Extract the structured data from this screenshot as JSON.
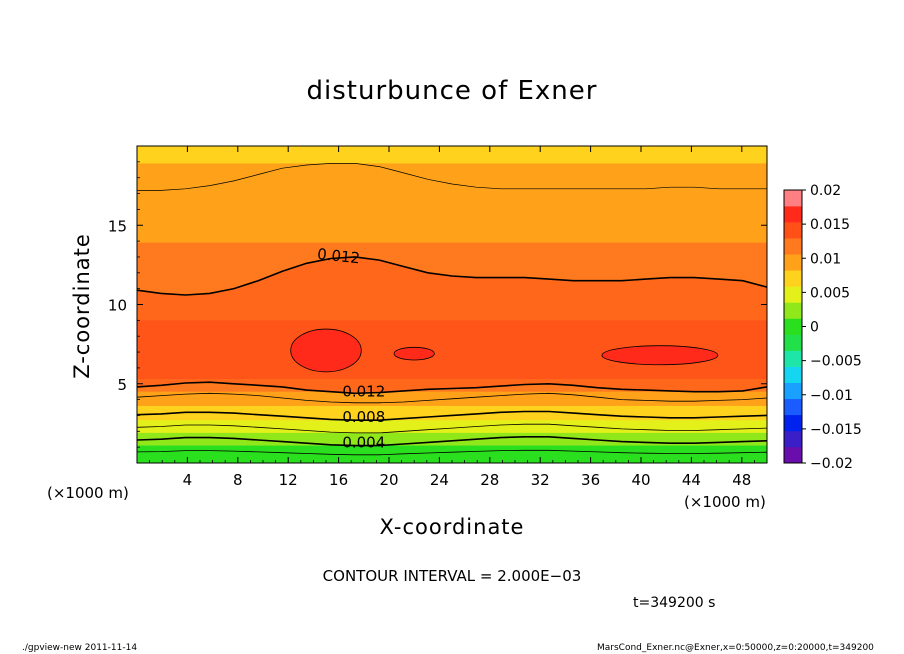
{
  "chart_data": {
    "type": "heatmap",
    "title": "disturbunce of Exner",
    "xlabel": "X-coordinate",
    "ylabel": "Z-coordinate",
    "x_unit_label": "(×1000 m)",
    "y_unit_label": "(×1000 m)",
    "xlim": [
      0,
      50
    ],
    "ylim": [
      0,
      20
    ],
    "x_ticks": [
      4,
      8,
      12,
      16,
      20,
      24,
      28,
      32,
      36,
      40,
      44,
      48
    ],
    "y_ticks": [
      5,
      10,
      15
    ],
    "colorbar": {
      "levels": [
        -0.02,
        -0.0175,
        -0.015,
        -0.0125,
        -0.01,
        -0.0075,
        -0.005,
        -0.0025,
        0,
        0.0025,
        0.005,
        0.0075,
        0.01,
        0.0125,
        0.015,
        0.0175,
        0.02
      ],
      "tick_values": [
        0.02,
        0.015,
        0.01,
        0.005,
        0,
        -0.005,
        -0.01,
        -0.015,
        -0.02
      ],
      "tick_labels": [
        "0.02",
        "0.015",
        "0.01",
        "0.005",
        "0",
        "−0.005",
        "−0.01",
        "−0.015",
        "−0.02"
      ],
      "colors": [
        "#6a0dad",
        "#3a1fc8",
        "#0022ee",
        "#1a5cff",
        "#1aa0ff",
        "#15d6f0",
        "#1ee6a8",
        "#22e04a",
        "#2ae01e",
        "#90e81a",
        "#e4f01a",
        "#ffd21e",
        "#ffa21a",
        "#ff7a1e",
        "#ff5018",
        "#ff2a1a",
        "#ff7f82"
      ]
    },
    "contour_lines": [
      {
        "level": 0.012,
        "z": [
          10.9,
          10.7,
          10.6,
          10.7,
          11.0,
          11.5,
          12.1,
          12.6,
          12.9,
          13.0,
          12.8,
          12.4,
          12.0,
          11.8,
          11.7,
          11.7,
          11.7,
          11.6,
          11.5,
          11.5,
          11.5,
          11.6,
          11.7,
          11.7,
          11.6,
          11.5,
          11.1
        ],
        "label": "0.012"
      },
      {
        "level": 0.012,
        "z": [
          4.8,
          4.9,
          5.05,
          5.1,
          5.0,
          4.9,
          4.8,
          4.6,
          4.5,
          4.4,
          4.45,
          4.55,
          4.65,
          4.7,
          4.75,
          4.85,
          4.95,
          5.0,
          4.9,
          4.75,
          4.65,
          4.6,
          4.55,
          4.5,
          4.5,
          4.55,
          4.8
        ],
        "label": "0.012"
      },
      {
        "level": 0.01,
        "z": [
          4.15,
          4.25,
          4.35,
          4.4,
          4.35,
          4.25,
          4.1,
          3.95,
          3.85,
          3.8,
          3.8,
          3.85,
          3.95,
          4.05,
          4.15,
          4.25,
          4.35,
          4.4,
          4.3,
          4.15,
          4.0,
          3.95,
          3.9,
          3.9,
          3.95,
          4.0,
          4.1
        ],
        "label": ""
      },
      {
        "level": 0.008,
        "z": [
          3.05,
          3.1,
          3.2,
          3.2,
          3.15,
          3.05,
          2.95,
          2.85,
          2.75,
          2.7,
          2.7,
          2.8,
          2.9,
          3.0,
          3.1,
          3.2,
          3.25,
          3.25,
          3.15,
          3.05,
          2.95,
          2.9,
          2.85,
          2.85,
          2.9,
          2.95,
          3.0
        ],
        "label": "0.008"
      },
      {
        "level": 0.006,
        "z": [
          2.25,
          2.3,
          2.4,
          2.4,
          2.35,
          2.25,
          2.15,
          2.05,
          1.95,
          1.9,
          1.9,
          2.0,
          2.1,
          2.2,
          2.3,
          2.4,
          2.45,
          2.45,
          2.35,
          2.25,
          2.15,
          2.1,
          2.05,
          2.05,
          2.1,
          2.15,
          2.2
        ],
        "label": ""
      },
      {
        "level": 0.004,
        "z": [
          1.45,
          1.5,
          1.6,
          1.6,
          1.55,
          1.45,
          1.35,
          1.25,
          1.15,
          1.1,
          1.1,
          1.2,
          1.3,
          1.4,
          1.5,
          1.6,
          1.65,
          1.65,
          1.55,
          1.45,
          1.35,
          1.3,
          1.25,
          1.25,
          1.3,
          1.35,
          1.4
        ],
        "label": "0.004"
      },
      {
        "level": 0.002,
        "z": [
          0.7,
          0.72,
          0.78,
          0.78,
          0.75,
          0.7,
          0.65,
          0.6,
          0.55,
          0.52,
          0.52,
          0.58,
          0.63,
          0.68,
          0.73,
          0.78,
          0.8,
          0.8,
          0.75,
          0.7,
          0.65,
          0.62,
          0.6,
          0.6,
          0.62,
          0.65,
          0.68
        ],
        "label": ""
      }
    ],
    "upper_lines": [
      {
        "z": [
          17.2,
          17.2,
          17.3,
          17.5,
          17.8,
          18.2,
          18.6,
          18.8,
          18.9,
          18.9,
          18.7,
          18.3,
          17.9,
          17.6,
          17.4,
          17.3,
          17.3,
          17.3,
          17.3,
          17.3,
          17.3,
          17.3,
          17.4,
          17.4,
          17.3,
          17.3,
          17.3
        ]
      }
    ],
    "closed_contours": [
      {
        "level": 0.016,
        "cx": 15.0,
        "cz": 7.1,
        "rx": 2.8,
        "rz": 1.35
      },
      {
        "level": 0.016,
        "cx": 22.0,
        "cz": 6.9,
        "rx": 1.6,
        "rz": 0.4
      },
      {
        "level": 0.016,
        "cx": 41.5,
        "cz": 6.8,
        "rx": 4.6,
        "rz": 0.6
      }
    ],
    "band_fills": [
      {
        "color": "#ffd21e",
        "from": 18.9,
        "to": 20.0
      },
      {
        "color": "#ffa21a",
        "from": 13.9,
        "to": 18.9
      },
      {
        "color": "#ff7a1e",
        "from": 9.0,
        "to": 13.9
      },
      {
        "color": "#ff5018",
        "from": 5.3,
        "to": 9.0
      },
      {
        "color": "#ff7a1e",
        "from": 4.5,
        "to": 5.3
      },
      {
        "color": "#ffa21a",
        "from": 3.6,
        "to": 4.5
      },
      {
        "color": "#ffd21e",
        "from": 2.7,
        "to": 3.6
      },
      {
        "color": "#e4f01a",
        "from": 1.9,
        "to": 2.7
      },
      {
        "color": "#90e81a",
        "from": 1.1,
        "to": 1.9
      },
      {
        "color": "#2ae01e",
        "from": 0.0,
        "to": 1.1
      }
    ],
    "contour_interval_text": "CONTOUR INTERVAL = 2.000E−03",
    "time_text": "t=349200 s"
  },
  "footer": {
    "left": "./gpview-new   2011-11-14",
    "right": "MarsCond_Exner.nc@Exner,x=0:50000,z=0:20000,t=349200"
  }
}
